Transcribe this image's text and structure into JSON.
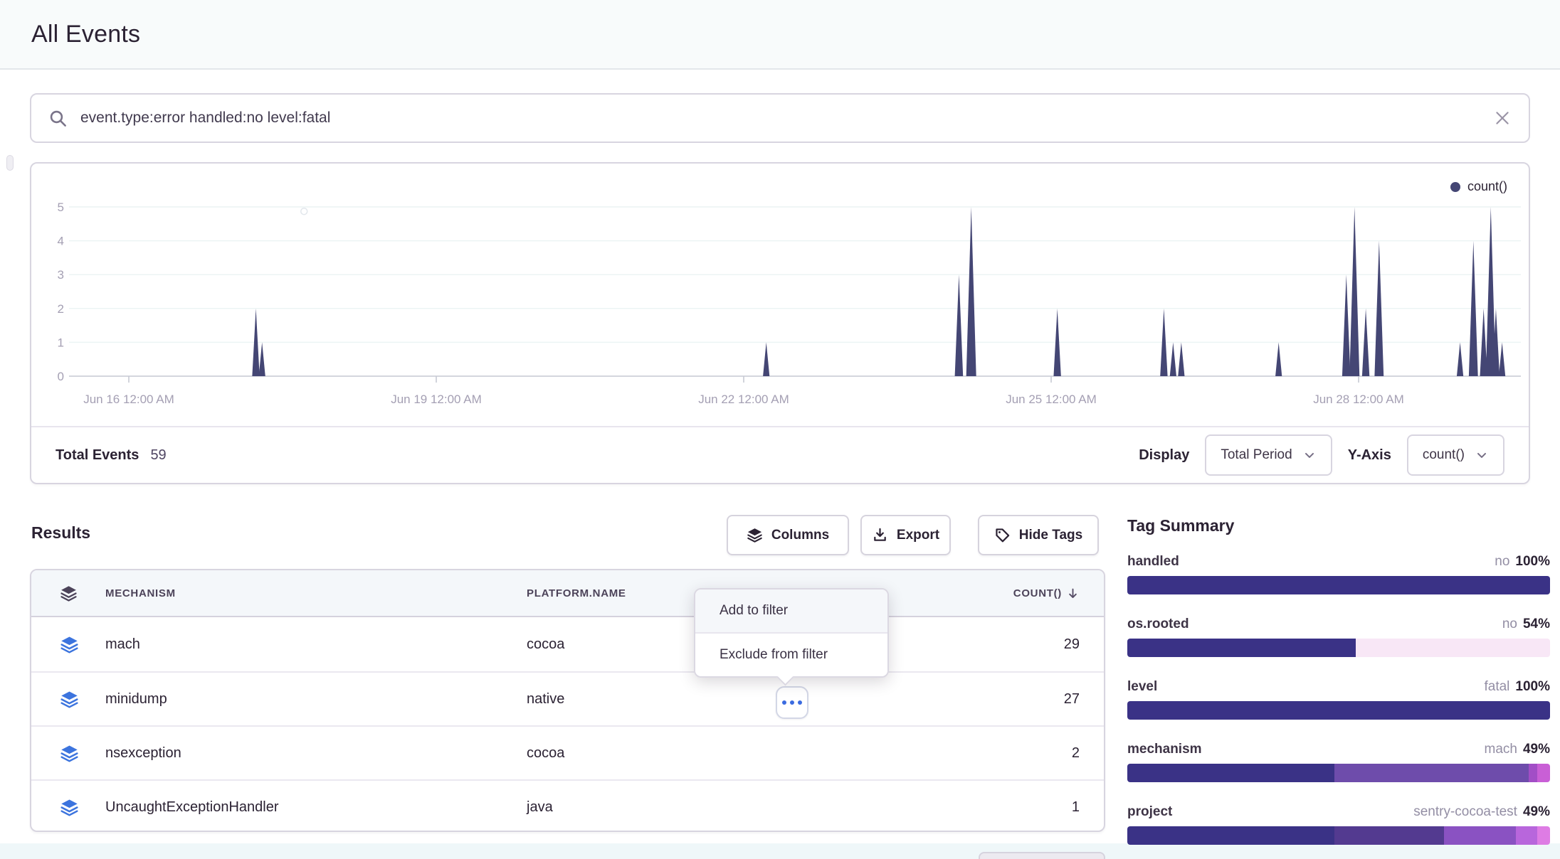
{
  "page": {
    "title": "All Events"
  },
  "search": {
    "query": "event.type:error handled:no level:fatal"
  },
  "chart_panel": {
    "legend_label": "count()",
    "total_label": "Total Events",
    "total_value": "59",
    "display_label": "Display",
    "display_value": "Total Period",
    "yaxis_label": "Y-Axis",
    "yaxis_value": "count()"
  },
  "chart_data": {
    "type": "area",
    "title": "",
    "series_name": "count()",
    "series_color": "#444674",
    "grid": true,
    "legend_position": "top-right",
    "y_axis": {
      "min": 0,
      "max": 5,
      "ticks": [
        0,
        1,
        2,
        3,
        4,
        5
      ]
    },
    "x_axis": {
      "domain_days": [
        -0.58,
        13.58
      ],
      "ticks": [
        {
          "day": 0,
          "label": "Jun 16 12:00 AM"
        },
        {
          "day": 3,
          "label": "Jun 19 12:00 AM"
        },
        {
          "day": 6,
          "label": "Jun 22 12:00 AM"
        },
        {
          "day": 9,
          "label": "Jun 25 12:00 AM"
        },
        {
          "day": 12,
          "label": "Jun 28 12:00 AM"
        }
      ]
    },
    "spikes": [
      {
        "day": 1.24,
        "time": "Jun 17 5:45 AM",
        "count": 2
      },
      {
        "day": 1.3,
        "time": "Jun 17 7:10 AM",
        "count": 1
      },
      {
        "day": 6.22,
        "time": "Jun 22 5:15 AM",
        "count": 1
      },
      {
        "day": 8.1,
        "time": "Jun 24 2:20 AM",
        "count": 3
      },
      {
        "day": 8.22,
        "time": "Jun 24 5:20 AM",
        "count": 5
      },
      {
        "day": 9.06,
        "time": "Jun 25 1:25 AM",
        "count": 2
      },
      {
        "day": 10.1,
        "time": "Jun 26 2:20 AM",
        "count": 2
      },
      {
        "day": 10.19,
        "time": "Jun 26 4:35 AM",
        "count": 1
      },
      {
        "day": 10.27,
        "time": "Jun 26 6:30 AM",
        "count": 1
      },
      {
        "day": 11.22,
        "time": "Jun 27 5:15 AM",
        "count": 1
      },
      {
        "day": 11.88,
        "time": "Jun 27 9:10 PM",
        "count": 3
      },
      {
        "day": 11.96,
        "time": "Jun 27 11:00 PM",
        "count": 5
      },
      {
        "day": 12.07,
        "time": "Jun 28 1:40 AM",
        "count": 2
      },
      {
        "day": 12.2,
        "time": "Jun 28 4:50 AM",
        "count": 4
      },
      {
        "day": 12.99,
        "time": "Jun 28 11:45 PM",
        "count": 1
      },
      {
        "day": 13.12,
        "time": "Jun 29 2:50 AM",
        "count": 4
      },
      {
        "day": 13.22,
        "time": "Jun 29 5:15 AM",
        "count": 2
      },
      {
        "day": 13.29,
        "time": "Jun 29 6:55 AM",
        "count": 5
      },
      {
        "day": 13.34,
        "time": "Jun 29 8:10 AM",
        "count": 2
      },
      {
        "day": 13.4,
        "time": "Jun 29 9:35 AM",
        "count": 1
      }
    ],
    "stray_point": {
      "day": 1.71,
      "value": 4.87
    }
  },
  "results": {
    "title": "Results",
    "buttons": [
      {
        "label": "Columns"
      },
      {
        "label": "Export"
      },
      {
        "label": "Hide Tags"
      }
    ],
    "table": {
      "columns": [
        "MECHANISM",
        "PLATFORM.NAME",
        "COUNT()"
      ],
      "sorted_by": "COUNT()",
      "sort_direction": "desc",
      "rows": [
        {
          "mechanism": "mach",
          "platform": "cocoa",
          "count": "29"
        },
        {
          "mechanism": "minidump",
          "platform": "native",
          "count": "27"
        },
        {
          "mechanism": "nsexception",
          "platform": "cocoa",
          "count": "2"
        },
        {
          "mechanism": "UncaughtExceptionHandler",
          "platform": "java",
          "count": "1"
        }
      ]
    }
  },
  "context_menu": {
    "items": [
      "Add to filter",
      "Exclude from filter"
    ]
  },
  "tag_summary": {
    "title": "Tag Summary",
    "tags": [
      {
        "name": "handled",
        "top_value": "no",
        "percent": "100%",
        "segments": [
          {
            "pct": 100,
            "color": "#3A3286"
          }
        ]
      },
      {
        "name": "os.rooted",
        "top_value": "no",
        "percent": "54%",
        "segments": [
          {
            "pct": 54,
            "color": "#3A3286"
          },
          {
            "pct": 46,
            "color": "#F8E7F6"
          }
        ]
      },
      {
        "name": "level",
        "top_value": "fatal",
        "percent": "100%",
        "segments": [
          {
            "pct": 100,
            "color": "#3A3286"
          }
        ]
      },
      {
        "name": "mechanism",
        "top_value": "mach",
        "percent": "49%",
        "segments": [
          {
            "pct": 49,
            "color": "#3A3286"
          },
          {
            "pct": 46,
            "color": "#6E4CAB"
          },
          {
            "pct": 2,
            "color": "#A24EC6"
          },
          {
            "pct": 3,
            "color": "#C95FD6"
          }
        ]
      },
      {
        "name": "project",
        "top_value": "sentry-cocoa-test",
        "percent": "49%",
        "segments": [
          {
            "pct": 49,
            "color": "#3A3286"
          },
          {
            "pct": 26,
            "color": "#533A90"
          },
          {
            "pct": 17,
            "color": "#8A52C2"
          },
          {
            "pct": 5,
            "color": "#B866DC"
          },
          {
            "pct": 3,
            "color": "#DE7CE4"
          }
        ]
      }
    ]
  },
  "colors": {
    "accent_blue": "#3B6BE0",
    "chart_series": "#444674",
    "bar_indigo": "#3A3286",
    "axis_text": "#A49FB3"
  }
}
